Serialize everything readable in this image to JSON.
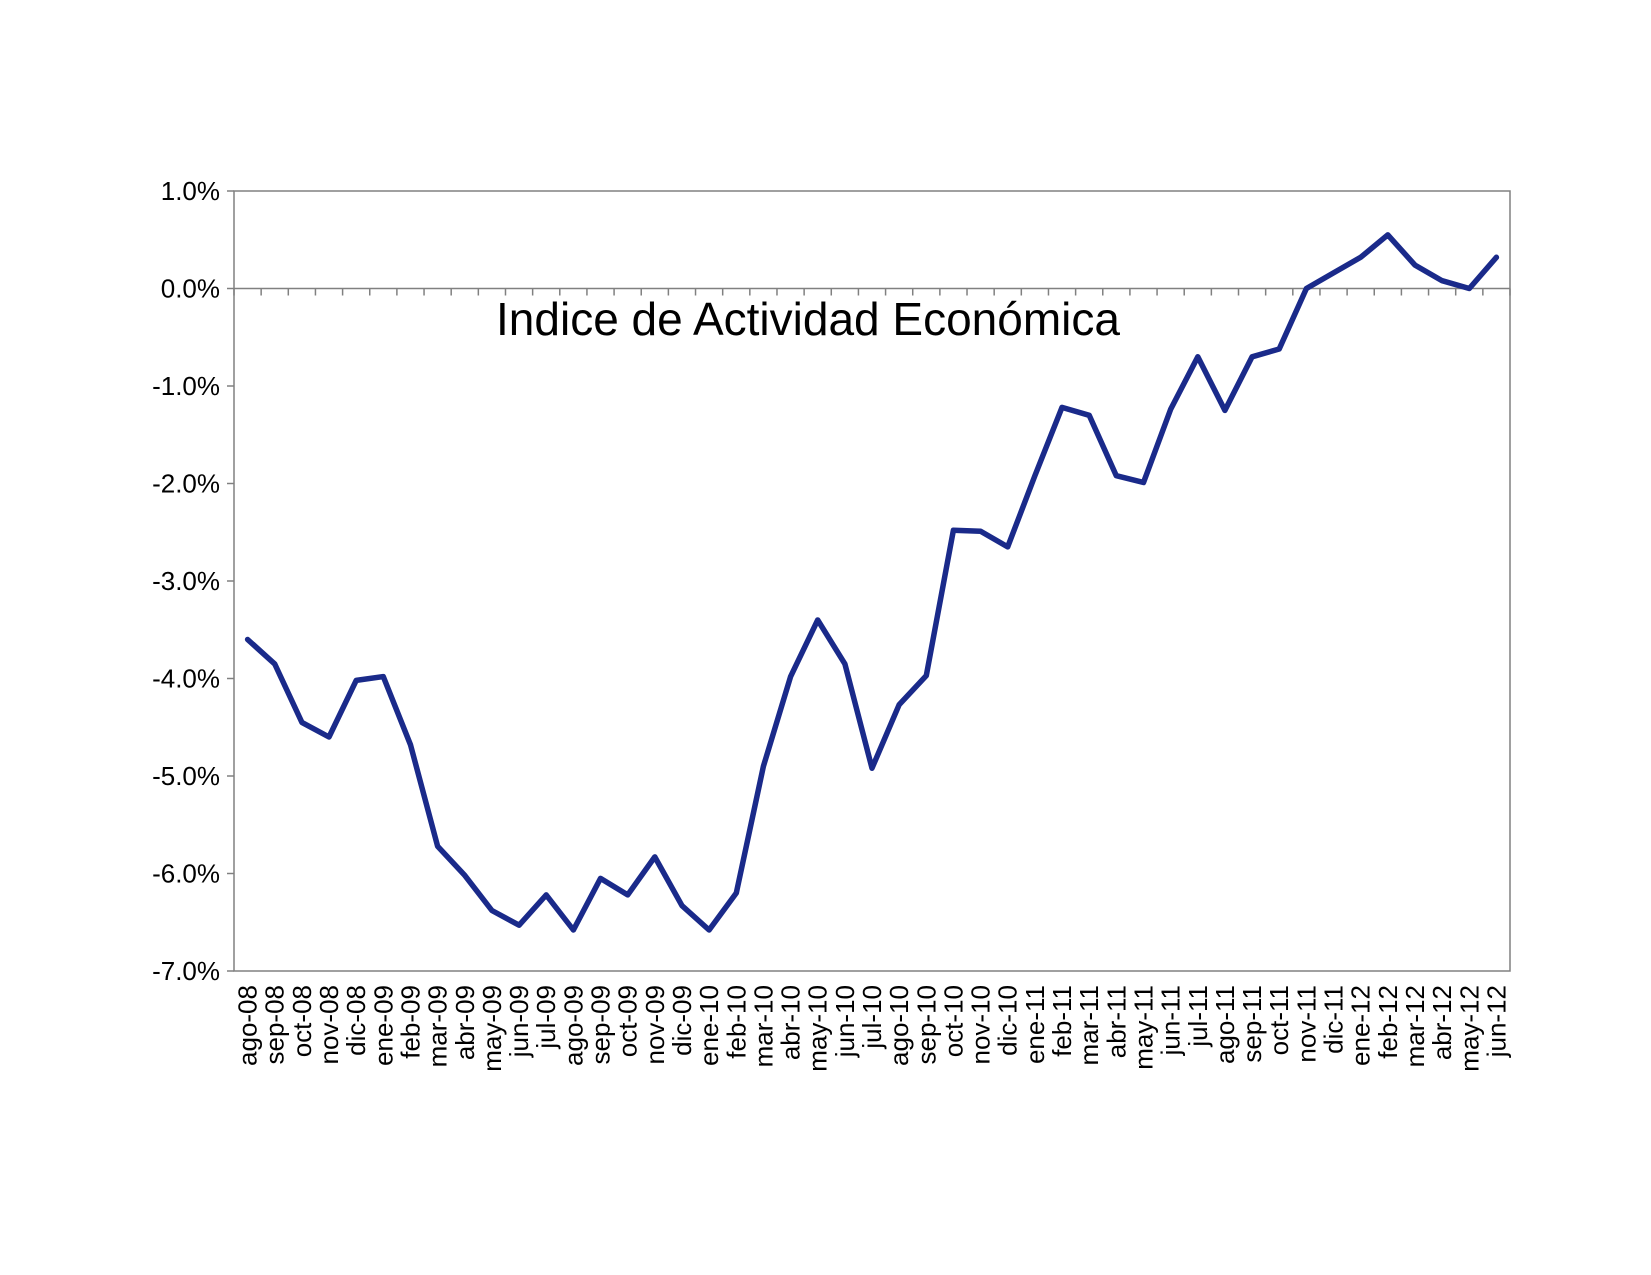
{
  "chart_data": {
    "type": "line",
    "title": "Indice de Actividad Económica",
    "xlabel": "",
    "ylabel": "",
    "ylim": [
      -7.0,
      1.0
    ],
    "yticks": [
      "1.0%",
      "0.0%",
      "-1.0%",
      "-2.0%",
      "-3.0%",
      "-4.0%",
      "-5.0%",
      "-6.0%",
      "-7.0%"
    ],
    "grid": false,
    "legend": "none",
    "colors": {
      "line": "#1a2a8a",
      "axis": "#808080"
    },
    "categories": [
      "ago-08",
      "sep-08",
      "oct-08",
      "nov-08",
      "dic-08",
      "ene-09",
      "feb-09",
      "mar-09",
      "abr-09",
      "may-09",
      "jun-09",
      "jul-09",
      "ago-09",
      "sep-09",
      "oct-09",
      "nov-09",
      "dic-09",
      "ene-10",
      "feb-10",
      "mar-10",
      "abr-10",
      "may-10",
      "jun-10",
      "jul-10",
      "ago-10",
      "sep-10",
      "oct-10",
      "nov-10",
      "dic-10",
      "ene-11",
      "feb-11",
      "mar-11",
      "abr-11",
      "may-11",
      "jun-11",
      "jul-11",
      "ago-11",
      "sep-11",
      "oct-11",
      "nov-11",
      "dic-11",
      "ene-12",
      "feb-12",
      "mar-12",
      "abr-12",
      "may-12",
      "jun-12"
    ],
    "series": [
      {
        "values": [
          -3.6,
          -3.85,
          -4.45,
          -4.6,
          -4.02,
          -3.98,
          -4.68,
          -5.72,
          -6.02,
          -6.38,
          -6.53,
          -6.22,
          -6.58,
          -6.05,
          -6.22,
          -5.83,
          -6.33,
          -6.58,
          -6.2,
          -4.9,
          -3.98,
          -3.4,
          -3.85,
          -4.92,
          -4.27,
          -3.97,
          -2.48,
          -2.49,
          -2.65,
          -1.92,
          -1.22,
          -1.3,
          -1.92,
          -1.99,
          -1.24,
          -0.7,
          -1.25,
          -0.7,
          -0.62,
          0.0,
          0.16,
          0.32,
          0.55,
          0.24,
          0.08,
          0.0,
          0.32
        ]
      }
    ]
  }
}
